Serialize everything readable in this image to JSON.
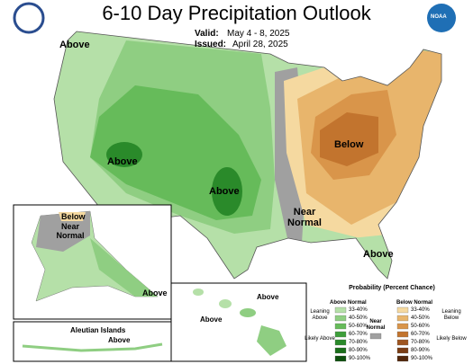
{
  "header": {
    "title": "6-10 Day Precipitation Outlook",
    "valid_label": "Valid:",
    "valid": "May 4 - 8, 2025",
    "issued_label": "Issued:",
    "issued": "April 28, 2025",
    "logo": "NOAA"
  },
  "map_labels": [
    "Above",
    "Above",
    "Above",
    "Below",
    "Near Normal",
    "Above",
    "Below",
    "Near Normal",
    "Above",
    "Above",
    "Above",
    "Aleutian Islands",
    "Above"
  ],
  "legend": {
    "title": "Probability (Percent Chance)",
    "above_header": "Above Normal",
    "below_header": "Below Normal",
    "near_normal": "Near Normal",
    "leaning_above": "Leaning Above",
    "likely_above": "Likely Above",
    "leaning_below": "Leaning Below",
    "likely_below": "Likely Below",
    "above_ranges": [
      "33-40%",
      "40-50%",
      "50-60%",
      "60-70%",
      "70-80%",
      "80-90%",
      "90-100%"
    ],
    "below_ranges": [
      "33-40%",
      "40-50%",
      "50-60%",
      "60-70%",
      "70-80%",
      "80-90%",
      "90-100%"
    ]
  }
}
